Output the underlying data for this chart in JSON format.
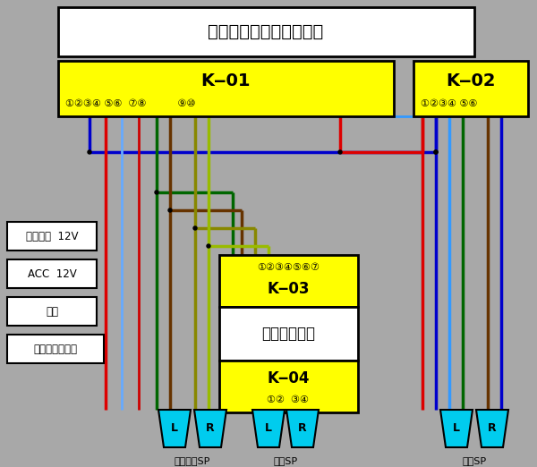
{
  "bg": "#a8a8a8",
  "title_text": "純正オーディオユニット",
  "k01_text": "K‒01",
  "k02_text": "K‒02",
  "k03_text": "K‒03",
  "k04_text": "K‒04",
  "door_amp_text": "ドア　アンプ",
  "k01_pins": "①②③④ ⑤⑥  ⑦⑧          ⑨⑩",
  "k02_pins": "①②③④ ⑤⑥",
  "k03_pins": "①②③④⑤⑥⑦",
  "k04_pins": "①②  ③④",
  "lbl_battery": "バッテリ  12V",
  "lbl_acc": "ACC  12V",
  "lbl_light": "照明",
  "lbl_antenna": "パワーアンテナ",
  "lbl_front_sp": "フロントSP",
  "lbl_door_sp": "ドアSP",
  "lbl_rear_sp": "リアSP",
  "yellow": "#ffff00",
  "white": "#ffffff",
  "black": "#000000",
  "sp_color": "#00ccee",
  "wire_blue": "#0000cc",
  "wire_red": "#dd0000",
  "wire_blue2": "#3399ff",
  "wire_darkblue": "#3333cc",
  "wire_green": "#006600",
  "wire_olive": "#888800",
  "wire_lgreen": "#99bb00",
  "wire_brown": "#663300",
  "wire_cyan": "#00aacc"
}
